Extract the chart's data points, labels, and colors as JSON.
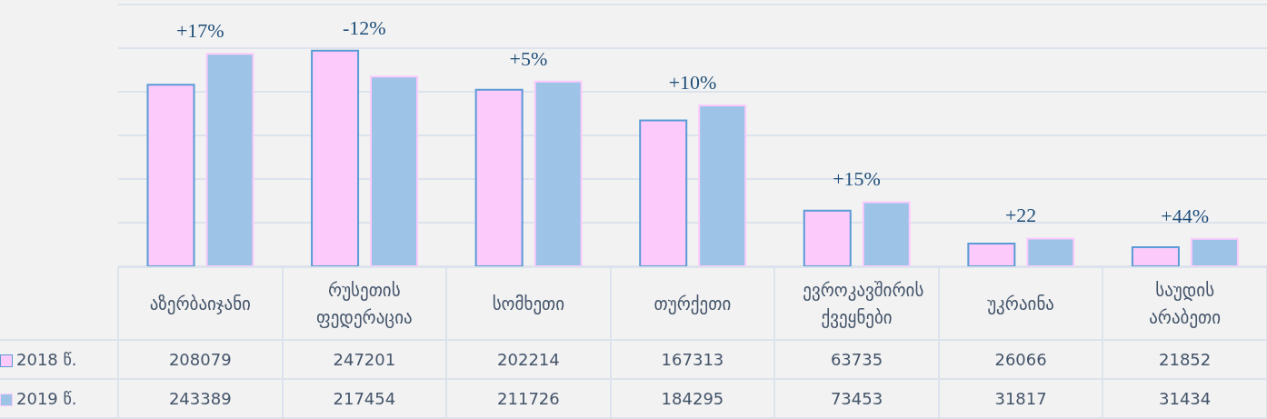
{
  "chart_data": {
    "type": "bar",
    "categories": [
      "აზერბაიჯანი",
      "რუსეთის ფედერაცია",
      "სომხეთი",
      "თურქეთი",
      "ევროკავშირის ქვეყნები",
      "უკრაინა",
      "საუდის არაბეთი"
    ],
    "series": [
      {
        "name": "2018 წ.",
        "color": "#fccbfc",
        "values": [
          208079,
          247201,
          202214,
          167313,
          63735,
          26066,
          21852
        ]
      },
      {
        "name": "2019 წ.",
        "color": "#9dc3e6",
        "values": [
          243389,
          217454,
          211726,
          184295,
          73453,
          31817,
          31434
        ]
      }
    ],
    "ylim": [
      0,
      300000
    ],
    "yticks": [
      {
        "value": 0,
        "label": null
      },
      {
        "value": 50000,
        "label": null
      },
      {
        "value": 100000,
        "label": null
      },
      {
        "value": 150000,
        "label": null
      },
      {
        "value": 200000,
        "label": null
      },
      {
        "value": 250000,
        "label": null
      },
      {
        "value": 300000,
        "label": null
      }
    ],
    "tick_labels": "x",
    "grid": "y",
    "legend": "bottom left",
    "data_labels": true,
    "annotations": [
      "+17%",
      "-12%",
      "+5%",
      "+10%",
      "+15%",
      "+22",
      "+44%"
    ]
  }
}
